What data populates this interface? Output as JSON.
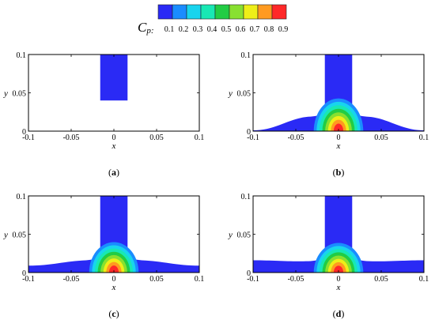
{
  "chart_data": {
    "type": "heatmap",
    "colorbar": {
      "label_symbol": "C",
      "label_subscript": "p",
      "label_suffix": ":",
      "ticks": [
        "0.1",
        "0.2",
        "0.3",
        "0.4",
        "0.5",
        "0.6",
        "0.7",
        "0.8",
        "0.9"
      ],
      "colors": [
        "#2a2af5",
        "#1a8cff",
        "#18d4ee",
        "#18e8b4",
        "#22cc44",
        "#88e030",
        "#eeee18",
        "#ff9a20",
        "#ff2828"
      ]
    },
    "panels": [
      {
        "label_open": "(",
        "label_letter": "a",
        "label_close": ")",
        "xlabel": "x",
        "ylabel": "y",
        "xlim": [
          -0.1,
          0.1
        ],
        "ylim": [
          0,
          0.1
        ],
        "xticks": [
          "-0.1",
          "-0.05",
          "0",
          "0.05",
          "0.1"
        ],
        "yticks": [
          "0",
          "0.05",
          "0.1"
        ],
        "column_half_width": 0.016,
        "column_bottom_y": 0.04,
        "film_thickness_center": 0,
        "film_thickness_edge": 0,
        "peak_cp": 0
      },
      {
        "label_open": "(",
        "label_letter": "b",
        "label_close": ")",
        "xlabel": "x",
        "ylabel": "y",
        "xlim": [
          -0.1,
          0.1
        ],
        "ylim": [
          0,
          0.1
        ],
        "xticks": [
          "-0.1",
          "-0.05",
          "0",
          "0.05",
          "0.1"
        ],
        "yticks": [
          "0",
          "0.05",
          "0.1"
        ],
        "column_half_width": 0.016,
        "column_bottom_y": 0,
        "film_thickness_center": 0.02,
        "film_thickness_edge": 0.001,
        "peak_cp": 0.9
      },
      {
        "label_open": "(",
        "label_letter": "c",
        "label_close": ")",
        "xlabel": "x",
        "ylabel": "y",
        "xlim": [
          -0.1,
          0.1
        ],
        "ylim": [
          0,
          0.1
        ],
        "xticks": [
          "-0.1",
          "-0.05",
          "0",
          "0.05",
          "0.1"
        ],
        "yticks": [
          "0",
          "0.05",
          "0.1"
        ],
        "column_half_width": 0.016,
        "column_bottom_y": 0,
        "film_thickness_center": 0.017,
        "film_thickness_edge": 0.009,
        "peak_cp": 0.9
      },
      {
        "label_open": "(",
        "label_letter": "d",
        "label_close": ")",
        "xlabel": "x",
        "ylabel": "y",
        "xlim": [
          -0.1,
          0.1
        ],
        "ylim": [
          0,
          0.1
        ],
        "xticks": [
          "-0.1",
          "-0.05",
          "0",
          "0.05",
          "0.1"
        ],
        "yticks": [
          "0",
          "0.05",
          "0.1"
        ],
        "column_half_width": 0.016,
        "column_bottom_y": 0,
        "film_thickness_center": 0.016,
        "film_thickness_edge": 0.016,
        "peak_cp": 0.9
      }
    ]
  }
}
